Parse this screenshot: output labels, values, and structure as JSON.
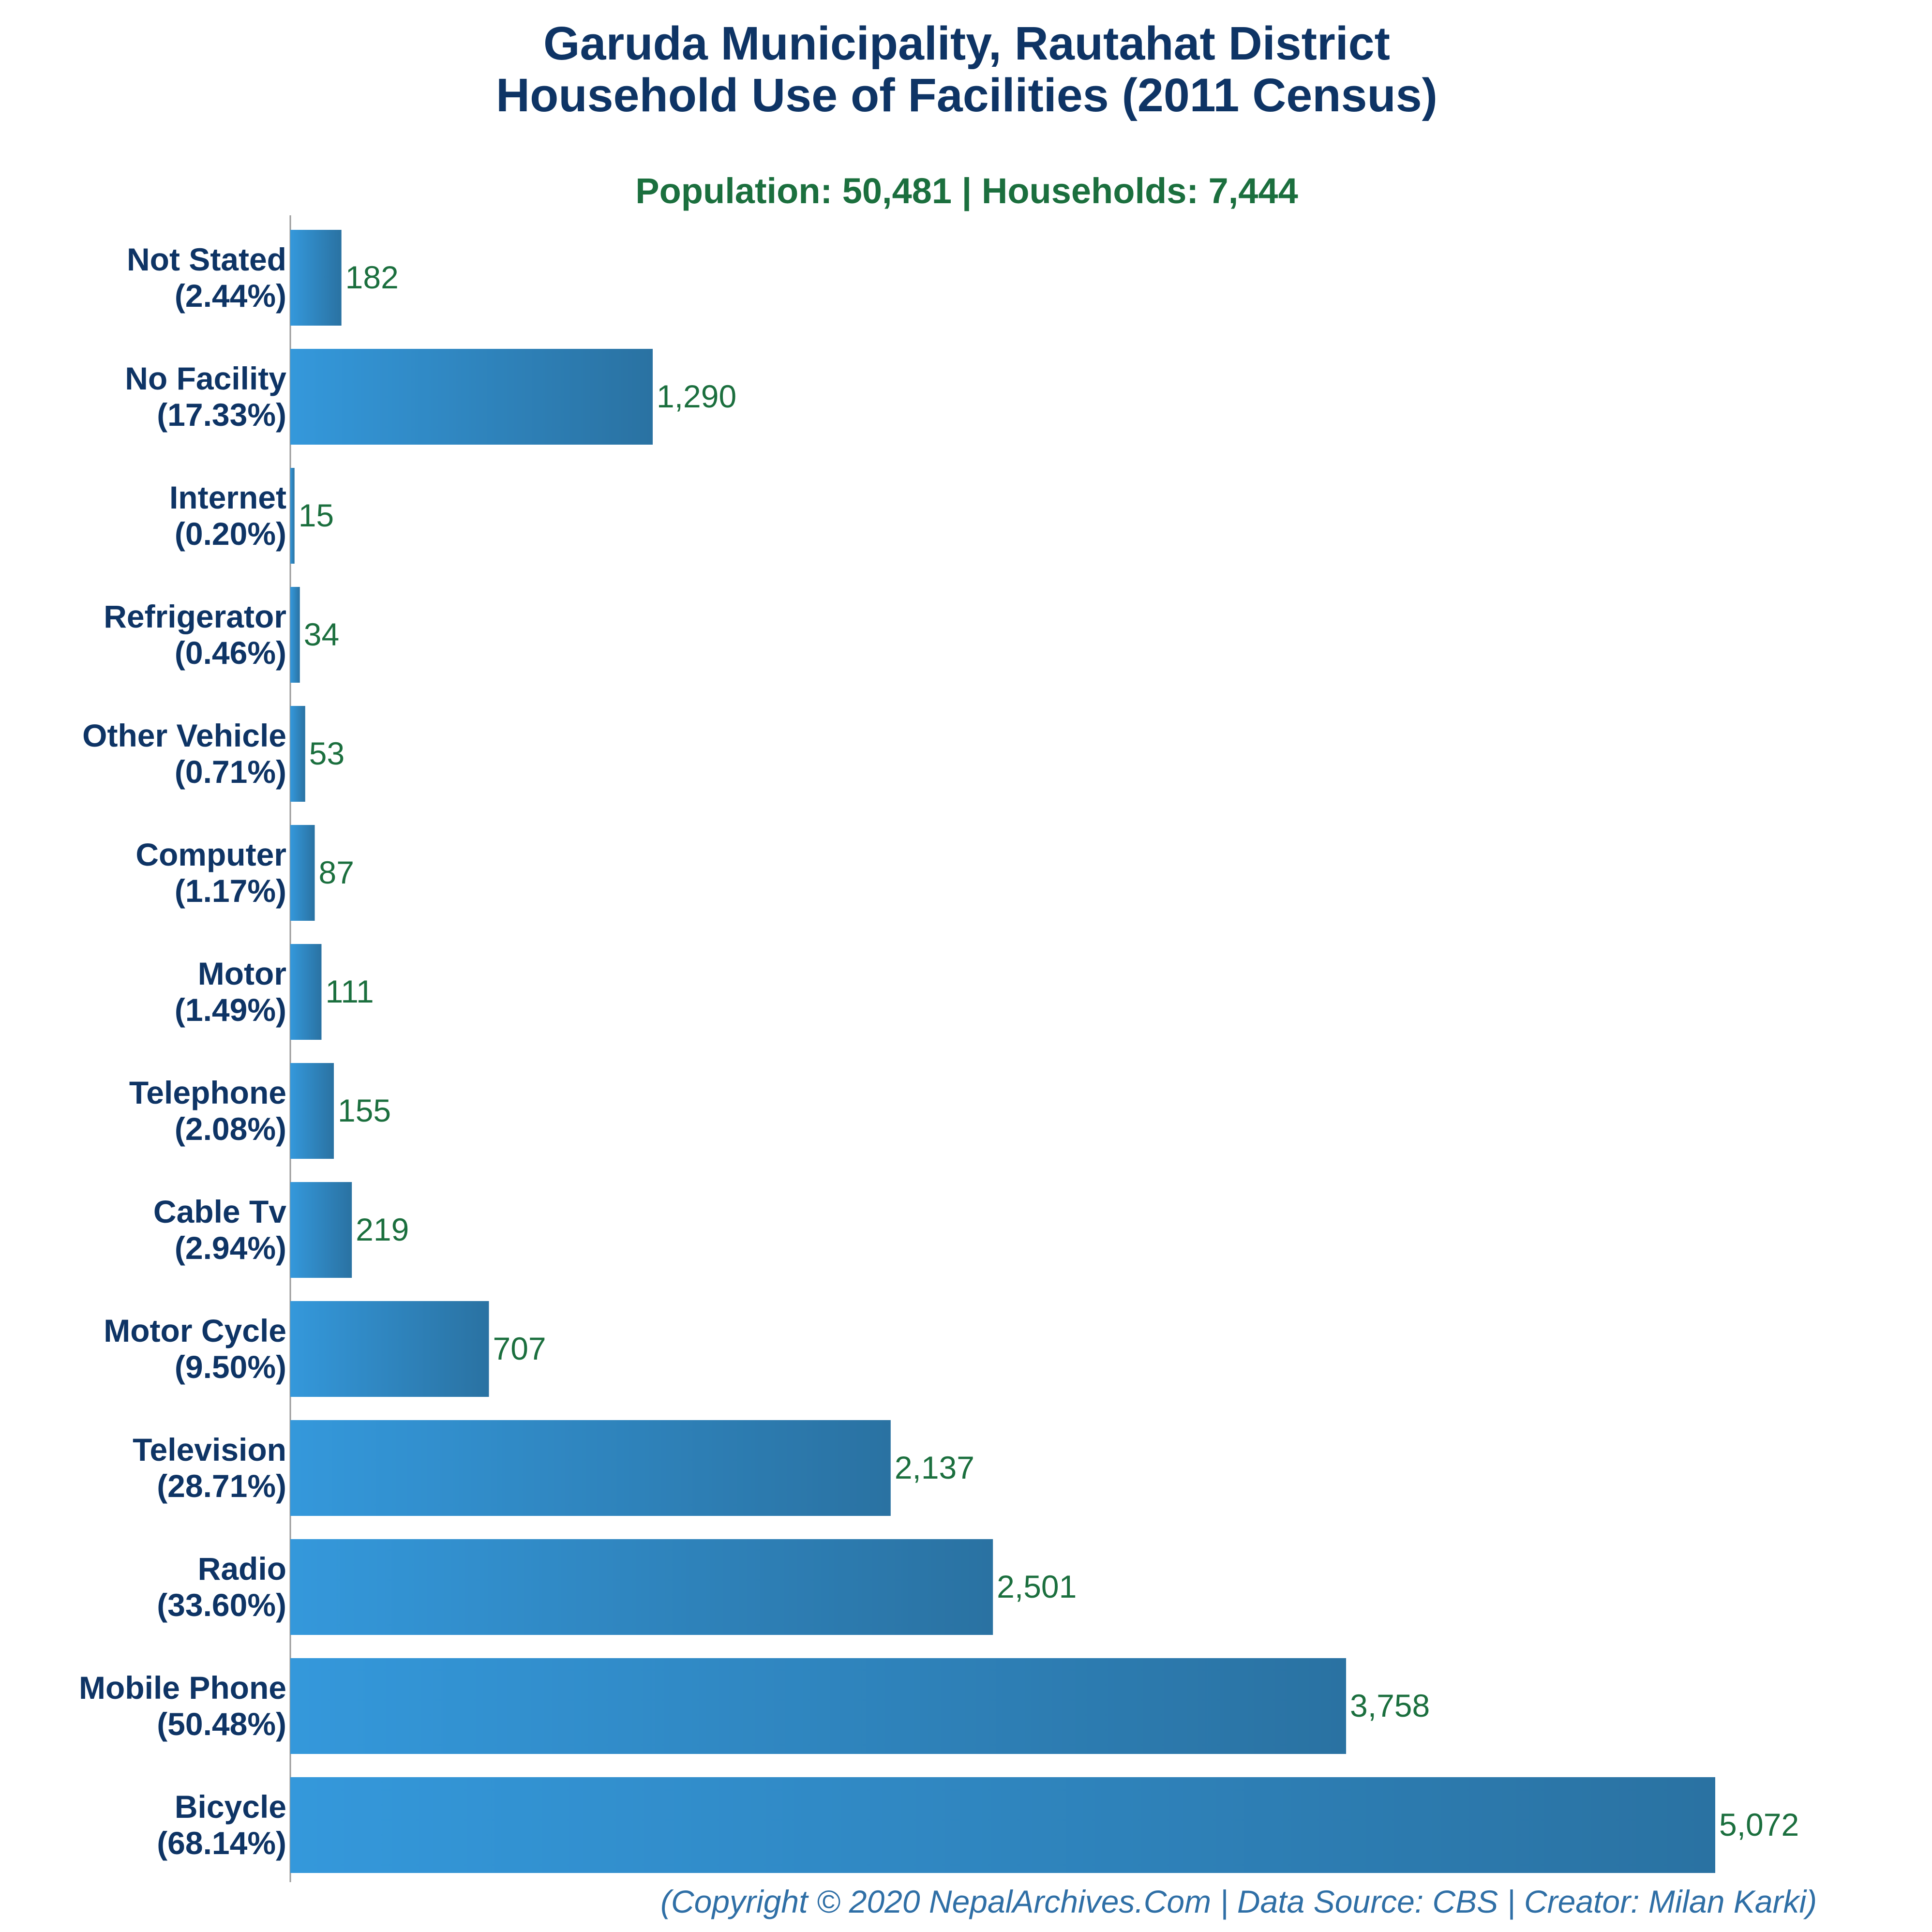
{
  "title_line1": "Garuda Municipality, Rautahat District",
  "title_line2": "Household Use of Facilities (2011 Census)",
  "subtitle": "Population: 50,481 | Households: 7,444",
  "footer": "(Copyright © 2020 NepalArchives.Com | Data Source: CBS | Creator: Milan Karki)",
  "colors": {
    "bar_light": "#3498db",
    "bar_dark": "#2a72a2",
    "title": "#0e3465",
    "value_text": "#1b6f3e",
    "footer_text": "#2f6fa6"
  },
  "chart_data": {
    "type": "bar",
    "orientation": "horizontal",
    "categories": [
      "Not Stated",
      "No Facility",
      "Internet",
      "Refrigerator",
      "Other Vehicle",
      "Computer",
      "Motor",
      "Telephone",
      "Cable Tv",
      "Motor Cycle",
      "Television",
      "Radio",
      "Mobile Phone",
      "Bicycle"
    ],
    "percent_labels": [
      "(2.44%)",
      "(17.33%)",
      "(0.20%)",
      "(0.46%)",
      "(0.71%)",
      "(1.17%)",
      "(1.49%)",
      "(2.08%)",
      "(2.94%)",
      "(9.50%)",
      "(28.71%)",
      "(33.60%)",
      "(50.48%)",
      "(68.14%)"
    ],
    "values": [
      182,
      1290,
      15,
      34,
      53,
      87,
      111,
      155,
      219,
      707,
      2137,
      2501,
      3758,
      5072
    ],
    "value_labels": [
      "182",
      "1,290",
      "15",
      "34",
      "53",
      "87",
      "111",
      "155",
      "219",
      "707",
      "2,137",
      "2,501",
      "3,758",
      "5,072"
    ],
    "xlim": [
      0,
      5072
    ],
    "grid": false,
    "legend": "none"
  }
}
